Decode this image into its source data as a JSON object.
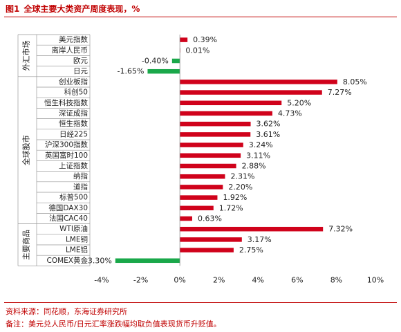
{
  "header": {
    "number": "图1",
    "title": "全球主要大类资产周度表现，%"
  },
  "footer": {
    "source": "资料来源：同花顺，东海证券研究所",
    "note": "备注：美元兑人民币/日元汇率涨跌幅均取负值表现货币升贬值。"
  },
  "colors": {
    "positive": "#d0021b",
    "negative": "#1aa84a",
    "accent": "#c00000"
  },
  "chart_data": {
    "type": "bar",
    "orientation": "horizontal",
    "categories": [
      "美元指数",
      "离岸人民币",
      "欧元",
      "日元",
      "创业板指",
      "科创50",
      "恒生科技指数",
      "深证成指",
      "恒生指数",
      "日经225",
      "沪深300指数",
      "英国富时100",
      "上证指数",
      "纳指",
      "道指",
      "标普500",
      "德国DAX30",
      "法国CAC40",
      "WTI原油",
      "LME铜",
      "LME铝",
      "COMEX黄金"
    ],
    "values": [
      0.39,
      0.01,
      -0.4,
      -1.65,
      8.05,
      7.27,
      5.2,
      4.73,
      3.62,
      3.61,
      3.24,
      3.11,
      2.88,
      2.31,
      2.2,
      1.92,
      1.72,
      0.63,
      7.32,
      3.17,
      2.75,
      -3.3
    ],
    "data_labels": [
      "0.39%",
      "0.01%",
      "-0.40%",
      "-1.65%",
      "8.05%",
      "7.27%",
      "5.20%",
      "4.73%",
      "3.62%",
      "3.61%",
      "3.24%",
      "3.11%",
      "2.88%",
      "2.31%",
      "2.20%",
      "1.92%",
      "1.72%",
      "0.63%",
      "7.32%",
      "3.17%",
      "2.75%",
      "-3.30%"
    ],
    "groups": [
      {
        "name": "外汇市场",
        "start": 0,
        "end": 3
      },
      {
        "name": "全球股市",
        "start": 4,
        "end": 17
      },
      {
        "name": "主要商品",
        "start": 18,
        "end": 21
      }
    ],
    "xlim": [
      -4,
      10
    ],
    "xticks": [
      -4,
      -2,
      0,
      2,
      4,
      6,
      8,
      10
    ],
    "xtick_labels": [
      "-4%",
      "-2%",
      "0%",
      "2%",
      "4%",
      "6%",
      "8%",
      "10%"
    ],
    "grid": false,
    "legend": "none"
  }
}
